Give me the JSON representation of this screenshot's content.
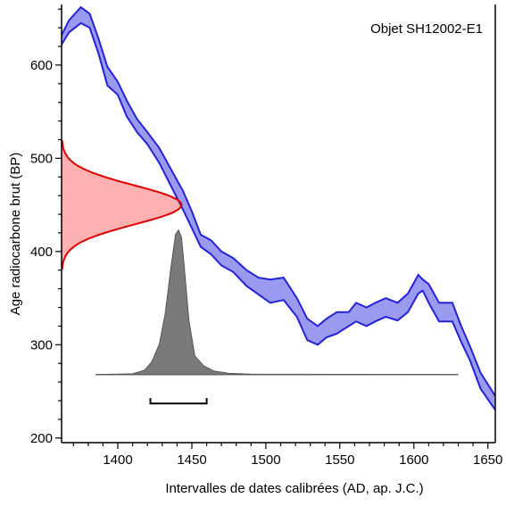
{
  "chart_data": {
    "type": "area",
    "title": "Objet SH12002-E1",
    "xlabel": "Intervalles de dates calibrées (AD, ap. J.C.)",
    "ylabel": "Age radiocarbone brut (BP)",
    "xlim": [
      1362,
      1655
    ],
    "ylim": [
      195,
      665
    ],
    "x_ticks": [
      1400,
      1450,
      1500,
      1550,
      1600,
      1650
    ],
    "y_ticks": [
      200,
      300,
      400,
      500,
      600
    ],
    "colors": {
      "calibration_curve": "#2222dd",
      "calibration_fill": "#9a9af0",
      "radiocarbon_curve": "#e00000",
      "radiocarbon_fill": "#ffb0b0",
      "posterior_fill": "#7a7a7a",
      "posterior_stroke": "#555555"
    },
    "calibration_curve": {
      "x": [
        1362,
        1367,
        1375,
        1381,
        1387,
        1393,
        1400,
        1406,
        1413,
        1420,
        1428,
        1436,
        1444,
        1450,
        1456,
        1463,
        1470,
        1478,
        1487,
        1495,
        1503,
        1512,
        1521,
        1528,
        1535,
        1541,
        1548,
        1556,
        1561,
        1568,
        1574,
        1581,
        1589,
        1596,
        1603,
        1606,
        1610,
        1617,
        1626,
        1632,
        1638,
        1645,
        1655
      ],
      "upper": [
        632,
        648,
        662,
        655,
        628,
        598,
        582,
        562,
        542,
        528,
        511,
        488,
        465,
        443,
        418,
        412,
        400,
        393,
        380,
        372,
        370,
        372,
        350,
        328,
        320,
        328,
        335,
        335,
        345,
        340,
        345,
        350,
        345,
        355,
        375,
        370,
        365,
        345,
        345,
        320,
        298,
        270,
        245
      ],
      "lower": [
        622,
        635,
        645,
        640,
        612,
        578,
        568,
        545,
        528,
        515,
        495,
        470,
        445,
        425,
        405,
        397,
        385,
        378,
        363,
        354,
        345,
        348,
        330,
        305,
        300,
        308,
        312,
        320,
        325,
        320,
        325,
        330,
        326,
        335,
        355,
        358,
        345,
        325,
        325,
        303,
        283,
        253,
        230
      ]
    },
    "radiocarbon_date": {
      "mean_bp": 450,
      "sigma_bp": 21,
      "baseline_year": 1362,
      "peak_year": 1443
    },
    "calibrated_distribution": {
      "baseline_bp": 268,
      "years": [
        1385,
        1410,
        1418,
        1423,
        1428,
        1432,
        1436,
        1439,
        1441,
        1443,
        1445,
        1448,
        1452,
        1458,
        1465,
        1475,
        1490,
        1630
      ],
      "relative_probability": [
        0,
        0.005,
        0.03,
        0.09,
        0.21,
        0.42,
        0.75,
        0.97,
        1.0,
        0.95,
        0.73,
        0.38,
        0.13,
        0.06,
        0.025,
        0.008,
        0.003,
        0
      ],
      "peak_bp": 423
    },
    "calibrated_range": {
      "from": 1422,
      "to": 1460,
      "level_bp": 237
    }
  }
}
